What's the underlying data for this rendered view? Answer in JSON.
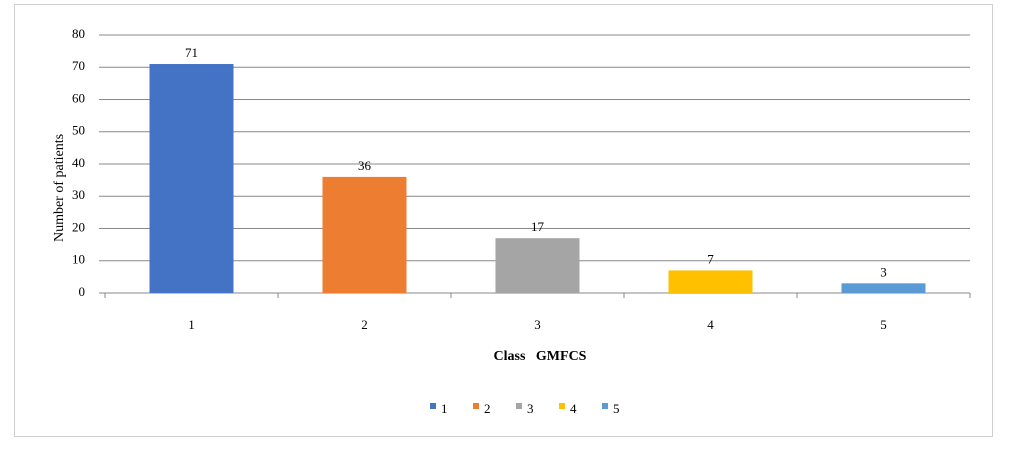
{
  "chart_data": {
    "type": "bar",
    "x_label": "Class   GMFCS",
    "y_label": "Number of patients",
    "categories": [
      "1",
      "2",
      "3",
      "4",
      "5"
    ],
    "values": [
      71,
      36,
      17,
      7,
      3
    ],
    "colors": [
      "#4472c4",
      "#ed7d31",
      "#a5a5a5",
      "#ffc000",
      "#5b9bd5"
    ],
    "ylim": [
      0,
      80
    ],
    "yticks": [
      0,
      10,
      20,
      30,
      40,
      50,
      60,
      70,
      80
    ],
    "grid": true,
    "legend": "bottom"
  }
}
